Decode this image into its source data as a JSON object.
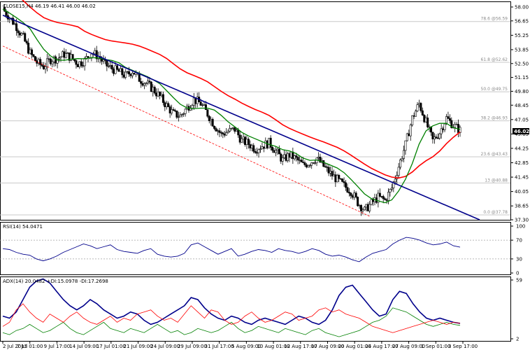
{
  "chart_data": [
    {
      "type": "candlestick",
      "panel": "price",
      "title": "CLOSE15,H4  46.19 46.41 46.00 46.02",
      "y_axis_labels": [
        "58.00",
        "56.65",
        "55.25",
        "53.85",
        "52.50",
        "51.15",
        "49.80",
        "48.45",
        "47.05",
        "45.65",
        "44.25",
        "42.85",
        "41.45",
        "40.05",
        "38.65",
        "37.30"
      ],
      "ylim": [
        37.3,
        58.0
      ],
      "last_price": "46.02",
      "fibonacci": [
        {
          "label": "78.6 @56.59",
          "value": 56.59
        },
        {
          "label": "61.8 @52.62",
          "value": 52.62
        },
        {
          "label": "50.0 @49.75",
          "value": 49.75
        },
        {
          "label": "38.2 @46.93",
          "value": 46.93
        },
        {
          "label": "23.6 @43.43",
          "value": 43.43
        },
        {
          "label": "13 @40.88",
          "value": 40.88
        },
        {
          "label": "0.0 @37.78",
          "value": 37.78
        }
      ],
      "closes_approx": [
        57.8,
        57.0,
        56.1,
        55.0,
        53.5,
        52.6,
        52.2,
        52.9,
        53.0,
        53.4,
        53.1,
        52.5,
        52.8,
        53.6,
        53.2,
        52.4,
        52.0,
        51.7,
        51.3,
        51.8,
        51.0,
        50.6,
        50.0,
        49.3,
        48.4,
        47.6,
        47.4,
        48.2,
        49.0,
        48.6,
        47.6,
        46.5,
        45.6,
        45.9,
        46.1,
        45.0,
        44.7,
        44.2,
        44.5,
        44.8,
        44.0,
        43.1,
        43.6,
        43.2,
        42.6,
        42.9,
        43.3,
        42.5,
        41.8,
        41.2,
        40.6,
        40.1,
        39.0,
        38.2,
        38.9,
        39.5,
        39.2,
        40.4,
        42.5,
        44.6,
        47.2,
        48.6,
        46.8,
        45.0,
        45.8,
        47.2,
        46.5,
        46.0
      ],
      "series": [
        {
          "name": "",
          "color": "#ff0000",
          "kind": "ma-slow"
        },
        {
          "name": "",
          "color": "#008000",
          "kind": "ma-fast"
        },
        {
          "name": "",
          "color": "#00008b",
          "kind": "trendline"
        }
      ],
      "x_tick_labels": [
        "2 Jul 2015",
        "7 Jul 01:00",
        "9 Jul 17:00",
        "14 Jul 09:00",
        "17 Jul 01:00",
        "21 Jul 09:00",
        "24 Jul 09:00",
        "29 Jul 09:00",
        "31 Jul 17:00",
        "5 Aug 09:00",
        "10 Aug 01:00",
        "12 Aug 17:00",
        "17 Aug 09:00",
        "20 Aug 01:00",
        "24 Aug 17:00",
        "27 Aug 09:00",
        "1 Sep 01:00",
        "3 Sep 17:00"
      ]
    },
    {
      "type": "line",
      "panel": "rsi",
      "title": "RSI(14) 54.0471",
      "y_axis_labels": [
        "100",
        "70",
        "30",
        "0"
      ],
      "ylim": [
        0,
        100
      ],
      "levels": [
        70,
        30
      ],
      "color": "#00008b",
      "values": [
        52,
        50,
        44,
        40,
        38,
        30,
        26,
        30,
        36,
        44,
        50,
        56,
        62,
        58,
        52,
        56,
        60,
        50,
        46,
        44,
        42,
        48,
        52,
        40,
        36,
        34,
        36,
        42,
        60,
        64,
        56,
        48,
        40,
        46,
        52,
        36,
        40,
        46,
        50,
        48,
        44,
        52,
        48,
        46,
        42,
        46,
        52,
        48,
        40,
        36,
        38,
        34,
        28,
        24,
        34,
        42,
        46,
        50,
        62,
        70,
        76,
        74,
        70,
        64,
        60,
        62,
        66,
        58,
        55
      ]
    },
    {
      "type": "line",
      "panel": "adx",
      "title": "ADX(14) 20.0482 +DI:15.0978 -DI:17.2698",
      "y_axis_labels": [
        "59",
        "2"
      ],
      "ylim": [
        2,
        59
      ],
      "series": [
        {
          "name": "ADX",
          "color": "#00008b",
          "values": [
            24,
            22,
            28,
            40,
            52,
            58,
            60,
            56,
            48,
            40,
            34,
            30,
            34,
            40,
            36,
            30,
            26,
            22,
            24,
            28,
            26,
            20,
            16,
            18,
            22,
            26,
            30,
            34,
            42,
            40,
            32,
            26,
            22,
            20,
            24,
            22,
            18,
            16,
            20,
            22,
            20,
            18,
            16,
            20,
            24,
            22,
            18,
            16,
            20,
            30,
            44,
            52,
            54,
            46,
            38,
            30,
            24,
            26,
            40,
            48,
            46,
            36,
            28,
            22,
            20,
            22,
            20,
            18,
            17
          ]
        },
        {
          "name": "+DI",
          "color": "#008000",
          "values": [
            8,
            6,
            10,
            12,
            16,
            12,
            8,
            10,
            14,
            18,
            12,
            8,
            6,
            10,
            14,
            18,
            12,
            10,
            8,
            12,
            10,
            8,
            12,
            16,
            12,
            8,
            10,
            6,
            8,
            12,
            10,
            8,
            10,
            14,
            18,
            12,
            8,
            10,
            14,
            12,
            10,
            8,
            12,
            10,
            8,
            6,
            10,
            12,
            8,
            6,
            4,
            6,
            8,
            10,
            14,
            18,
            20,
            24,
            32,
            30,
            28,
            24,
            20,
            16,
            14,
            16,
            18,
            16,
            15
          ]
        },
        {
          "name": "-DI",
          "color": "#ff0000",
          "values": [
            14,
            18,
            30,
            36,
            28,
            22,
            18,
            26,
            22,
            18,
            24,
            28,
            22,
            18,
            16,
            20,
            24,
            18,
            22,
            20,
            26,
            28,
            30,
            24,
            20,
            22,
            18,
            26,
            34,
            28,
            22,
            30,
            28,
            20,
            16,
            18,
            24,
            28,
            22,
            18,
            20,
            24,
            28,
            26,
            20,
            22,
            24,
            30,
            32,
            28,
            30,
            26,
            24,
            22,
            18,
            14,
            12,
            10,
            8,
            10,
            12,
            14,
            16,
            18,
            20,
            18,
            16,
            18,
            17
          ]
        }
      ]
    }
  ]
}
